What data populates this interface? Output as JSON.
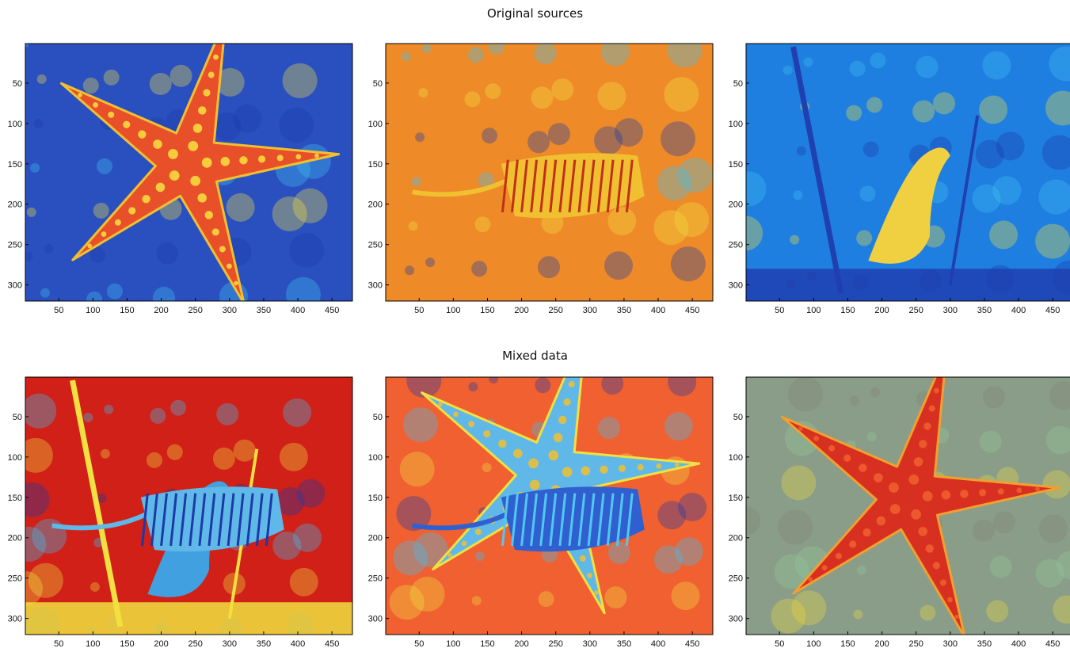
{
  "rows": [
    {
      "title": "Original sources"
    },
    {
      "title": "Mixed data"
    }
  ],
  "chart_data": [
    {
      "type": "heatmap",
      "row": 0,
      "col": 0,
      "depicts": "starfish",
      "colormap": "jet",
      "xlim": [
        1,
        480
      ],
      "ylim": [
        1,
        320
      ],
      "x_ticks": [
        50,
        100,
        150,
        200,
        250,
        300,
        350,
        400,
        450
      ],
      "y_ticks": [
        50,
        100,
        150,
        200,
        250,
        300
      ]
    },
    {
      "type": "heatmap",
      "row": 0,
      "col": 1,
      "depicts": "tiger in water",
      "colormap": "jet",
      "xlim": [
        1,
        480
      ],
      "ylim": [
        1,
        320
      ],
      "x_ticks": [
        50,
        100,
        150,
        200,
        250,
        300,
        350,
        400,
        450
      ],
      "y_ticks": [
        50,
        100,
        150,
        200,
        250,
        300
      ]
    },
    {
      "type": "heatmap",
      "row": 0,
      "col": 2,
      "depicts": "bird on branches",
      "colormap": "jet",
      "xlim": [
        1,
        480
      ],
      "ylim": [
        1,
        320
      ],
      "x_ticks": [
        50,
        100,
        150,
        200,
        250,
        300,
        350,
        400,
        450
      ],
      "y_ticks": [
        50,
        100,
        150,
        200,
        250,
        300
      ]
    },
    {
      "type": "heatmap",
      "row": 1,
      "col": 0,
      "depicts": "mixture: tiger and bird",
      "colormap": "jet",
      "xlim": [
        1,
        480
      ],
      "ylim": [
        1,
        320
      ],
      "x_ticks": [
        50,
        100,
        150,
        200,
        250,
        300,
        350,
        400,
        450
      ],
      "y_ticks": [
        50,
        100,
        150,
        200,
        250,
        300
      ]
    },
    {
      "type": "heatmap",
      "row": 1,
      "col": 1,
      "depicts": "mixture: starfish and tiger",
      "colormap": "jet",
      "xlim": [
        1,
        480
      ],
      "ylim": [
        1,
        320
      ],
      "x_ticks": [
        50,
        100,
        150,
        200,
        250,
        300,
        350,
        400,
        450
      ],
      "y_ticks": [
        50,
        100,
        150,
        200,
        250,
        300
      ]
    },
    {
      "type": "heatmap",
      "row": 1,
      "col": 2,
      "depicts": "mixture: starfish dominant",
      "colormap": "jet",
      "xlim": [
        1,
        480
      ],
      "ylim": [
        1,
        320
      ],
      "x_ticks": [
        50,
        100,
        150,
        200,
        250,
        300,
        350,
        400,
        450
      ],
      "y_ticks": [
        50,
        100,
        150,
        200,
        250,
        300
      ]
    }
  ]
}
